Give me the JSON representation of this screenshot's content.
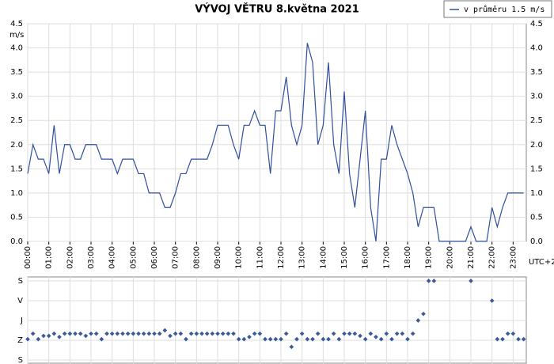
{
  "chart_data": [
    {
      "type": "line",
      "title": "VÝVOJ VĚTRU  8.května 2021",
      "y_unit": "m/s",
      "x_note": "UTC+2",
      "legend": "top-right",
      "grid": true,
      "xlim": [
        0,
        23.625
      ],
      "ylim": [
        0,
        4.5
      ],
      "xticks": [
        {
          "value": 0,
          "label": "00:00"
        },
        {
          "value": 1,
          "label": "01:00"
        },
        {
          "value": 2,
          "label": "02:00"
        },
        {
          "value": 3,
          "label": "03:00"
        },
        {
          "value": 4,
          "label": "04:00"
        },
        {
          "value": 5,
          "label": "05:00"
        },
        {
          "value": 6,
          "label": "06:00"
        },
        {
          "value": 7,
          "label": "07:00"
        },
        {
          "value": 8,
          "label": "08:00"
        },
        {
          "value": 9,
          "label": "09:00"
        },
        {
          "value": 10,
          "label": "10:00"
        },
        {
          "value": 11,
          "label": "11:00"
        },
        {
          "value": 12,
          "label": "12:00"
        },
        {
          "value": 13,
          "label": "13:00"
        },
        {
          "value": 14,
          "label": "14:00"
        },
        {
          "value": 15,
          "label": "15:00"
        },
        {
          "value": 16,
          "label": "16:00"
        },
        {
          "value": 17,
          "label": "17:00"
        },
        {
          "value": 18,
          "label": "18:00"
        },
        {
          "value": 19,
          "label": "19:00"
        },
        {
          "value": 20,
          "label": "20:00"
        },
        {
          "value": 21,
          "label": "21:00"
        },
        {
          "value": 22,
          "label": "22:00"
        },
        {
          "value": 23,
          "label": "23:00"
        }
      ],
      "yticks": [
        {
          "value": 0,
          "label": "0.0"
        },
        0.5,
        {
          "value": 1,
          "label": "1.0"
        },
        1.5,
        {
          "value": 2,
          "label": "2.0"
        },
        2.5,
        {
          "value": 3,
          "label": "3.0"
        },
        3.5,
        {
          "value": 4,
          "label": "4.0"
        },
        4.5
      ],
      "x": [
        0,
        0.25,
        0.5,
        0.75,
        1,
        1.25,
        1.5,
        1.75,
        2,
        2.25,
        2.5,
        2.75,
        3,
        3.25,
        3.5,
        3.75,
        4,
        4.25,
        4.5,
        4.75,
        5,
        5.25,
        5.5,
        5.75,
        6,
        6.25,
        6.5,
        6.75,
        7,
        7.25,
        7.5,
        7.75,
        8,
        8.25,
        8.5,
        8.75,
        9,
        9.25,
        9.5,
        9.75,
        10,
        10.25,
        10.5,
        10.75,
        11,
        11.25,
        11.5,
        11.75,
        12,
        12.25,
        12.5,
        12.75,
        13,
        13.25,
        13.5,
        13.75,
        14,
        14.25,
        14.5,
        14.75,
        15,
        15.25,
        15.5,
        15.75,
        16,
        16.25,
        16.5,
        16.75,
        17,
        17.25,
        17.5,
        17.75,
        18,
        18.25,
        18.5,
        18.75,
        19,
        19.25,
        19.5,
        19.75,
        20,
        20.25,
        20.5,
        20.75,
        21,
        21.25,
        21.5,
        21.75,
        22,
        22.25,
        22.5,
        22.75,
        23,
        23.25,
        23.5
      ],
      "series": [
        {
          "name": "v průměru 1.5 m/s",
          "color": "#2f4f9f",
          "values": [
            1.4,
            2.0,
            1.7,
            1.7,
            1.4,
            2.4,
            1.4,
            2.0,
            2.0,
            1.7,
            1.7,
            2.0,
            2.0,
            2.0,
            1.7,
            1.7,
            1.7,
            1.4,
            1.7,
            1.7,
            1.7,
            1.4,
            1.4,
            1.0,
            1.0,
            1.0,
            0.7,
            0.7,
            1.0,
            1.4,
            1.4,
            1.7,
            1.7,
            1.7,
            1.7,
            2.0,
            2.4,
            2.4,
            2.4,
            2.0,
            1.7,
            2.4,
            2.4,
            2.7,
            2.4,
            2.4,
            1.4,
            2.7,
            2.7,
            3.4,
            2.4,
            2.0,
            2.4,
            4.1,
            3.7,
            2.0,
            2.4,
            3.7,
            2.0,
            1.4,
            3.1,
            1.4,
            0.7,
            1.7,
            2.7,
            0.7,
            0.0,
            1.7,
            1.7,
            2.4,
            2.0,
            1.7,
            1.4,
            1.0,
            0.3,
            0.7,
            0.7,
            0.7,
            0.0,
            0.0,
            0.0,
            0.0,
            0.0,
            0.0,
            0.3,
            0.0,
            0.0,
            0.0,
            0.7,
            0.3,
            0.7,
            1.0,
            1.0,
            1.0,
            1.0
          ]
        }
      ]
    },
    {
      "type": "scatter",
      "color": "#3b5a9a",
      "grid": true,
      "xlim": [
        0,
        23.625
      ],
      "ylim": [
        360,
        0
      ],
      "yticks": [
        {
          "value": 0,
          "label": "S"
        },
        {
          "value": 90,
          "label": "V"
        },
        {
          "value": 180,
          "label": "J"
        },
        {
          "value": 270,
          "label": "Z"
        },
        {
          "value": 360,
          "label": "S"
        }
      ],
      "x": [
        0,
        0.25,
        0.5,
        0.75,
        1,
        1.25,
        1.5,
        1.75,
        2,
        2.25,
        2.5,
        2.75,
        3,
        3.25,
        3.5,
        3.75,
        4,
        4.25,
        4.5,
        4.75,
        5,
        5.25,
        5.5,
        5.75,
        6,
        6.25,
        6.5,
        6.75,
        7,
        7.25,
        7.5,
        7.75,
        8,
        8.25,
        8.5,
        8.75,
        9,
        9.25,
        9.5,
        9.75,
        10,
        10.25,
        10.5,
        10.75,
        11,
        11.25,
        11.5,
        11.75,
        12,
        12.25,
        12.5,
        12.75,
        13,
        13.25,
        13.5,
        13.75,
        14,
        14.25,
        14.5,
        14.75,
        15,
        15.25,
        15.5,
        15.75,
        16,
        16.25,
        16.5,
        16.75,
        17,
        17.25,
        17.5,
        17.75,
        18,
        18.25,
        18.5,
        18.75,
        19,
        19.25,
        19.5,
        19.75,
        20,
        20.25,
        20.5,
        20.75,
        21,
        21.25,
        21.5,
        21.75,
        22,
        22.25,
        22.5,
        22.75,
        23,
        23.25,
        23.5
      ],
      "values": [
        265,
        240,
        265,
        250,
        250,
        240,
        255,
        240,
        240,
        240,
        240,
        250,
        240,
        240,
        265,
        240,
        240,
        240,
        240,
        240,
        240,
        240,
        240,
        240,
        240,
        240,
        225,
        250,
        240,
        240,
        265,
        240,
        240,
        240,
        240,
        240,
        240,
        240,
        240,
        240,
        265,
        265,
        255,
        240,
        240,
        265,
        265,
        265,
        265,
        240,
        300,
        265,
        240,
        265,
        265,
        240,
        265,
        265,
        240,
        265,
        240,
        240,
        240,
        250,
        265,
        240,
        255,
        265,
        240,
        265,
        240,
        240,
        265,
        240,
        180,
        150,
        0,
        0,
        null,
        null,
        null,
        null,
        null,
        null,
        0,
        null,
        null,
        null,
        90,
        265,
        265,
        240,
        240,
        265,
        265
      ]
    }
  ]
}
